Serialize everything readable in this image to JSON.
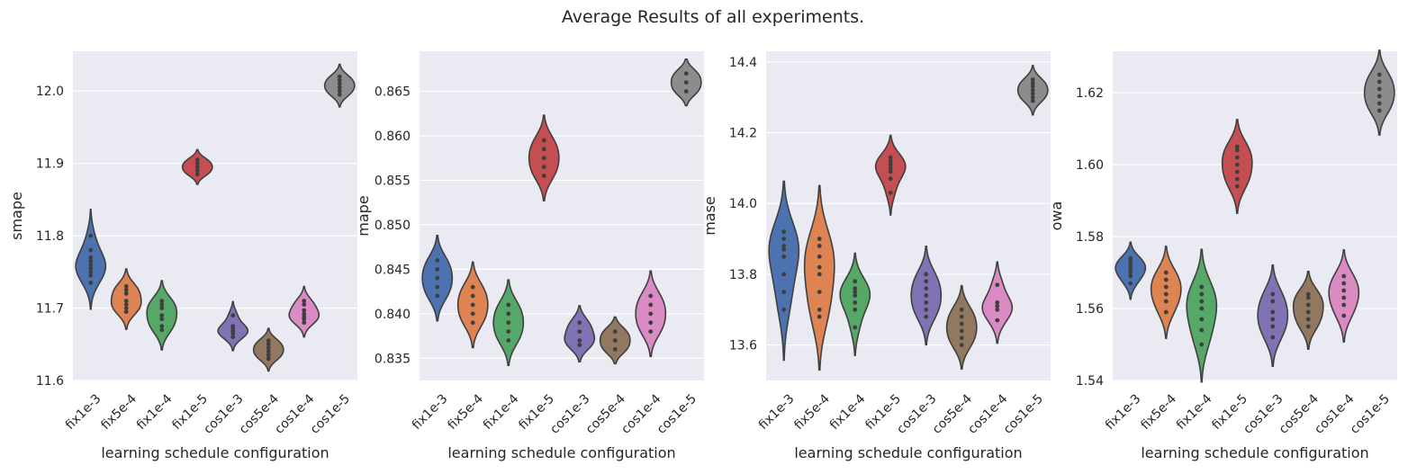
{
  "figure": {
    "title": "Average Results of all experiments."
  },
  "colors": {
    "panel_bg": "#eaeaf2",
    "grid": "#ffffff",
    "outline": "#3f3f3f",
    "dot": "#3f3f3f"
  },
  "chart_data": [
    {
      "type": "violin",
      "xlabel": "learning schedule configuration",
      "ylabel": "smape",
      "ylim": [
        11.6,
        12.055
      ],
      "yticks": [
        11.6,
        11.7,
        11.8,
        11.9,
        12.0
      ],
      "ytick_labels": [
        "11.6",
        "11.7",
        "11.8",
        "11.9",
        "12.0"
      ],
      "grid": true,
      "categories": [
        "fix1e-3",
        "fix5e-4",
        "fix1e-4",
        "fix1e-5",
        "cos1e-3",
        "cos5e-4",
        "cos1e-4",
        "cos1e-5"
      ],
      "series": [
        {
          "category": "fix1e-3",
          "color": "#4c72b0",
          "values": [
            11.735,
            11.745,
            11.75,
            11.755,
            11.76,
            11.765,
            11.77,
            11.78,
            11.8
          ]
        },
        {
          "category": "fix5e-4",
          "color": "#dd8452",
          "values": [
            11.695,
            11.7,
            11.705,
            11.71,
            11.72,
            11.725,
            11.73
          ]
        },
        {
          "category": "fix1e-4",
          "color": "#55a868",
          "values": [
            11.67,
            11.675,
            11.685,
            11.69,
            11.7,
            11.705,
            11.71
          ]
        },
        {
          "category": "fix1e-5",
          "color": "#c44e52",
          "values": [
            11.885,
            11.89,
            11.895,
            11.9,
            11.905
          ]
        },
        {
          "category": "cos1e-3",
          "color": "#8172b3",
          "values": [
            11.66,
            11.665,
            11.668,
            11.672,
            11.675,
            11.69
          ]
        },
        {
          "category": "cos5e-4",
          "color": "#937860",
          "values": [
            11.63,
            11.635,
            11.64,
            11.645,
            11.65,
            11.655
          ]
        },
        {
          "category": "cos1e-4",
          "color": "#da8bc3",
          "values": [
            11.68,
            11.685,
            11.688,
            11.692,
            11.697,
            11.705,
            11.71
          ]
        },
        {
          "category": "cos1e-5",
          "color": "#8c8c8c",
          "values": [
            11.995,
            12.0,
            12.005,
            12.01,
            12.015,
            12.02
          ]
        }
      ]
    },
    {
      "type": "violin",
      "xlabel": "learning schedule configuration",
      "ylabel": "mape",
      "ylim": [
        0.8325,
        0.8695
      ],
      "yticks": [
        0.835,
        0.84,
        0.845,
        0.85,
        0.855,
        0.86,
        0.865
      ],
      "ytick_labels": [
        "0.835",
        "0.840",
        "0.845",
        "0.850",
        "0.855",
        "0.860",
        "0.865"
      ],
      "grid": true,
      "categories": [
        "fix1e-3",
        "fix5e-4",
        "fix1e-4",
        "fix1e-5",
        "cos1e-3",
        "cos5e-4",
        "cos1e-4",
        "cos1e-5"
      ],
      "series": [
        {
          "category": "fix1e-3",
          "color": "#4c72b0",
          "values": [
            0.842,
            0.843,
            0.844,
            0.845,
            0.846
          ]
        },
        {
          "category": "fix5e-4",
          "color": "#dd8452",
          "values": [
            0.839,
            0.84,
            0.841,
            0.842,
            0.843
          ]
        },
        {
          "category": "fix1e-4",
          "color": "#55a868",
          "values": [
            0.837,
            0.838,
            0.839,
            0.84,
            0.841
          ]
        },
        {
          "category": "fix1e-5",
          "color": "#c44e52",
          "values": [
            0.8555,
            0.8565,
            0.8575,
            0.8585,
            0.8595
          ]
        },
        {
          "category": "cos1e-3",
          "color": "#8172b3",
          "values": [
            0.8365,
            0.837,
            0.838,
            0.839
          ]
        },
        {
          "category": "cos5e-4",
          "color": "#937860",
          "values": [
            0.836,
            0.837,
            0.838
          ]
        },
        {
          "category": "cos1e-4",
          "color": "#da8bc3",
          "values": [
            0.838,
            0.839,
            0.84,
            0.841,
            0.842
          ]
        },
        {
          "category": "cos1e-5",
          "color": "#8c8c8c",
          "values": [
            0.865,
            0.866,
            0.867
          ]
        }
      ]
    },
    {
      "type": "violin",
      "xlabel": "learning schedule configuration",
      "ylabel": "mase",
      "ylim": [
        13.5,
        14.43
      ],
      "yticks": [
        13.6,
        13.8,
        14.0,
        14.2,
        14.4
      ],
      "ytick_labels": [
        "13.6",
        "13.8",
        "14.0",
        "14.2",
        "14.4"
      ],
      "grid": true,
      "categories": [
        "fix1e-3",
        "fix5e-4",
        "fix1e-4",
        "fix1e-5",
        "cos1e-3",
        "cos5e-4",
        "cos1e-4",
        "cos1e-5"
      ],
      "series": [
        {
          "category": "fix1e-3",
          "color": "#4c72b0",
          "values": [
            13.7,
            13.75,
            13.8,
            13.85,
            13.87,
            13.88,
            13.9,
            13.92
          ]
        },
        {
          "category": "fix5e-4",
          "color": "#dd8452",
          "values": [
            13.68,
            13.7,
            13.75,
            13.8,
            13.82,
            13.85,
            13.88,
            13.9
          ]
        },
        {
          "category": "fix1e-4",
          "color": "#55a868",
          "values": [
            13.65,
            13.7,
            13.72,
            13.74,
            13.75,
            13.76,
            13.78
          ]
        },
        {
          "category": "fix1e-5",
          "color": "#c44e52",
          "values": [
            14.03,
            14.07,
            14.09,
            14.1,
            14.11,
            14.12,
            14.13
          ]
        },
        {
          "category": "cos1e-3",
          "color": "#8172b3",
          "values": [
            13.68,
            13.7,
            13.72,
            13.74,
            13.76,
            13.78,
            13.8
          ]
        },
        {
          "category": "cos5e-4",
          "color": "#937860",
          "values": [
            13.6,
            13.62,
            13.64,
            13.66,
            13.68,
            13.7
          ]
        },
        {
          "category": "cos1e-4",
          "color": "#da8bc3",
          "values": [
            13.67,
            13.7,
            13.71,
            13.72,
            13.77
          ]
        },
        {
          "category": "cos1e-5",
          "color": "#8c8c8c",
          "values": [
            14.29,
            14.3,
            14.31,
            14.32,
            14.33,
            14.34,
            14.35
          ]
        }
      ]
    },
    {
      "type": "violin",
      "xlabel": "learning schedule configuration",
      "ylabel": "owa",
      "ylim": [
        1.54,
        1.6315
      ],
      "yticks": [
        1.54,
        1.56,
        1.58,
        1.6,
        1.62
      ],
      "ytick_labels": [
        "1.54",
        "1.56",
        "1.58",
        "1.60",
        "1.62"
      ],
      "grid": true,
      "categories": [
        "fix1e-3",
        "fix5e-4",
        "fix1e-4",
        "fix1e-5",
        "cos1e-3",
        "cos5e-4",
        "cos1e-4",
        "cos1e-5"
      ],
      "series": [
        {
          "category": "fix1e-3",
          "color": "#4c72b0",
          "values": [
            1.567,
            1.569,
            1.57,
            1.571,
            1.572,
            1.573,
            1.574
          ]
        },
        {
          "category": "fix5e-4",
          "color": "#dd8452",
          "values": [
            1.559,
            1.562,
            1.564,
            1.566,
            1.568,
            1.57
          ]
        },
        {
          "category": "fix1e-4",
          "color": "#55a868",
          "values": [
            1.55,
            1.554,
            1.557,
            1.56,
            1.562,
            1.564,
            1.566
          ]
        },
        {
          "category": "fix1e-5",
          "color": "#c44e52",
          "values": [
            1.594,
            1.596,
            1.598,
            1.6,
            1.602,
            1.604,
            1.605
          ]
        },
        {
          "category": "cos1e-3",
          "color": "#8172b3",
          "values": [
            1.552,
            1.555,
            1.557,
            1.559,
            1.562,
            1.564
          ]
        },
        {
          "category": "cos5e-4",
          "color": "#937860",
          "values": [
            1.555,
            1.557,
            1.559,
            1.561,
            1.563,
            1.564
          ]
        },
        {
          "category": "cos1e-4",
          "color": "#da8bc3",
          "values": [
            1.558,
            1.561,
            1.563,
            1.565,
            1.567,
            1.569
          ]
        },
        {
          "category": "cos1e-5",
          "color": "#8c8c8c",
          "values": [
            1.615,
            1.617,
            1.619,
            1.621,
            1.623,
            1.625
          ]
        }
      ]
    }
  ]
}
